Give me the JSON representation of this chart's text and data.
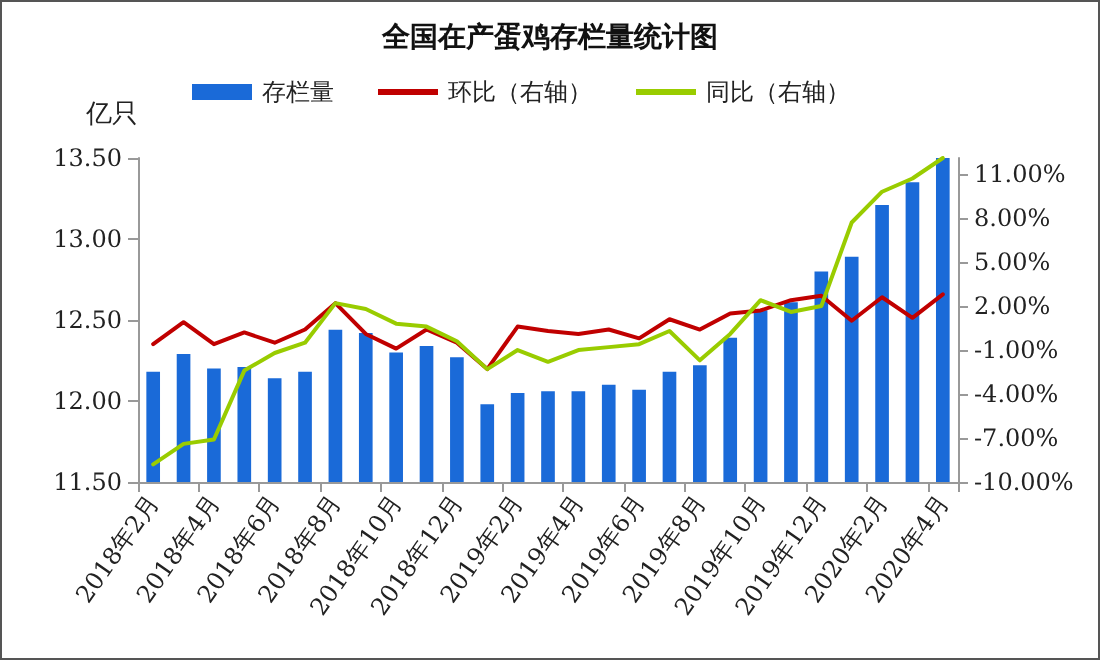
{
  "chart_data": {
    "type": "bar",
    "title": "全国在产蛋鸡存栏量统计图",
    "ylabel": "亿只",
    "categories": [
      "2018年2月",
      null,
      "2018年4月",
      null,
      "2018年6月",
      null,
      "2018年8月",
      null,
      "2018年10月",
      null,
      "2018年12月",
      null,
      "2019年2月",
      null,
      "2019年4月",
      null,
      "2019年6月",
      null,
      "2019年8月",
      null,
      "2019年10月",
      null,
      "2019年12月",
      null,
      "2020年2月",
      null,
      "2020年4月"
    ],
    "series": [
      {
        "name": "存栏量",
        "color": "#1a6ad8",
        "values": [
          12.18,
          12.29,
          12.2,
          12.21,
          12.14,
          12.18,
          12.44,
          12.42,
          12.3,
          12.34,
          12.27,
          11.98,
          12.05,
          12.06,
          12.06,
          12.1,
          12.07,
          12.18,
          12.22,
          12.39,
          12.56,
          12.61,
          12.8,
          12.89,
          13.21,
          13.35,
          13.5
        ]
      },
      {
        "name": "环比（右轴）",
        "type": "line",
        "axis": "y2",
        "color": "#c00000",
        "values": [
          -0.6,
          0.9,
          -0.6,
          0.2,
          -0.5,
          0.4,
          2.2,
          0.1,
          -0.9,
          0.4,
          -0.5,
          -2.3,
          0.6,
          0.3,
          0.1,
          0.4,
          -0.2,
          1.1,
          0.4,
          1.5,
          1.7,
          2.4,
          2.7,
          1.0,
          2.6,
          1.2,
          2.8
        ]
      },
      {
        "name": "同比（右轴）",
        "type": "line",
        "axis": "y2",
        "color": "#99cc00",
        "values": [
          -8.8,
          -7.4,
          -7.1,
          -2.4,
          -1.2,
          -0.5,
          2.2,
          1.8,
          0.8,
          0.6,
          -0.4,
          -2.3,
          -1.0,
          -1.8,
          -1.0,
          -0.8,
          -0.6,
          0.3,
          -1.7,
          0.1,
          2.4,
          1.6,
          2.0,
          7.7,
          9.8,
          10.7,
          12.1
        ]
      }
    ],
    "ylim": [
      11.5,
      13.5
    ],
    "yticks": [
      {
        "value": 11.5,
        "label": "11.50"
      },
      {
        "value": 12,
        "label": "12.00"
      },
      {
        "value": 12.5,
        "label": "12.50"
      },
      {
        "value": 13,
        "label": "13.00"
      },
      {
        "value": 13.5,
        "label": "13.50"
      }
    ],
    "y2lim": [
      -10,
      12.1
    ],
    "y2ticks": [
      {
        "value": -10,
        "label": "-10.00%"
      },
      {
        "value": -7,
        "label": "-7.00%"
      },
      {
        "value": -4,
        "label": "-4.00%"
      },
      {
        "value": -1,
        "label": "-1.00%"
      },
      {
        "value": 2,
        "label": "2.00%"
      },
      {
        "value": 5,
        "label": "5.00%"
      },
      {
        "value": 8,
        "label": "8.00%"
      },
      {
        "value": 11,
        "label": "11.00%"
      }
    ],
    "legend": "top",
    "grid": false,
    "marker": "none",
    "line_style": "solid"
  }
}
